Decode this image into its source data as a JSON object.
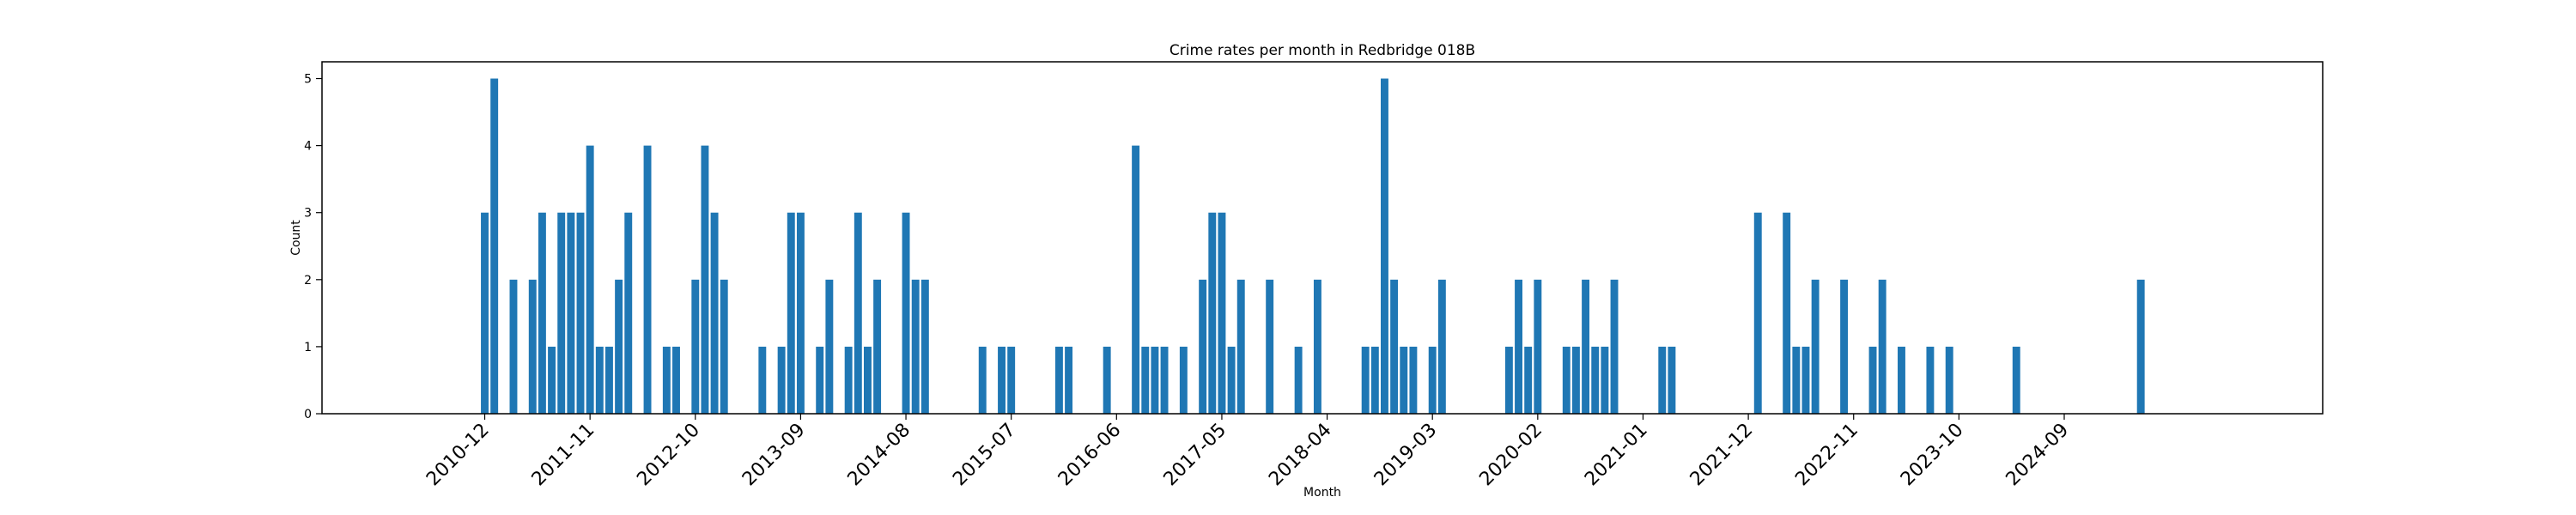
{
  "chart_data": {
    "type": "bar",
    "title": "Crime rates per month in Redbridge 018B",
    "xlabel": "Month",
    "ylabel": "Count",
    "ylim": [
      0,
      5.25
    ],
    "yticks": [
      0,
      1,
      2,
      3,
      4,
      5
    ],
    "xlim": [
      "2009-07",
      "2026-12"
    ],
    "xticks": [
      "2010-12",
      "2011-11",
      "2012-10",
      "2013-09",
      "2014-08",
      "2015-07",
      "2016-06",
      "2017-05",
      "2018-04",
      "2019-03",
      "2020-02",
      "2021-01",
      "2021-12",
      "2022-11",
      "2023-10",
      "2024-09"
    ],
    "grid": false,
    "bar_color": "#1f77b4",
    "x": [
      "2010-12",
      "2011-01",
      "2011-03",
      "2011-05",
      "2011-06",
      "2011-07",
      "2011-08",
      "2011-09",
      "2011-10",
      "2011-11",
      "2011-12",
      "2012-01",
      "2012-02",
      "2012-03",
      "2012-05",
      "2012-07",
      "2012-08",
      "2012-10",
      "2012-11",
      "2012-12",
      "2013-01",
      "2013-05",
      "2013-07",
      "2013-08",
      "2013-09",
      "2013-11",
      "2013-12",
      "2014-02",
      "2014-03",
      "2014-04",
      "2014-05",
      "2014-08",
      "2014-09",
      "2014-10",
      "2015-04",
      "2015-06",
      "2015-07",
      "2015-12",
      "2016-01",
      "2016-05",
      "2016-08",
      "2016-09",
      "2016-10",
      "2016-11",
      "2017-01",
      "2017-03",
      "2017-04",
      "2017-05",
      "2017-06",
      "2017-07",
      "2017-10",
      "2018-01",
      "2018-03",
      "2018-08",
      "2018-09",
      "2018-10",
      "2018-11",
      "2018-12",
      "2019-01",
      "2019-03",
      "2019-04",
      "2019-11",
      "2019-12",
      "2020-01",
      "2020-02",
      "2020-05",
      "2020-06",
      "2020-07",
      "2020-08",
      "2020-09",
      "2020-10",
      "2021-03",
      "2021-04",
      "2022-01",
      "2022-04",
      "2022-05",
      "2022-06",
      "2022-07",
      "2022-10",
      "2023-01",
      "2023-02",
      "2023-04",
      "2023-07",
      "2023-09",
      "2024-04",
      "2025-05"
    ],
    "values": [
      3,
      5,
      2,
      2,
      3,
      1,
      3,
      3,
      3,
      4,
      1,
      1,
      2,
      3,
      4,
      1,
      1,
      2,
      4,
      3,
      2,
      1,
      1,
      3,
      3,
      1,
      2,
      1,
      3,
      1,
      2,
      3,
      2,
      2,
      1,
      1,
      1,
      1,
      1,
      1,
      4,
      1,
      1,
      1,
      1,
      2,
      3,
      3,
      1,
      2,
      2,
      1,
      2,
      1,
      1,
      5,
      2,
      1,
      1,
      1,
      2,
      1,
      2,
      1,
      2,
      1,
      1,
      2,
      1,
      1,
      2,
      1,
      1,
      3,
      3,
      1,
      1,
      2,
      2,
      1,
      2,
      1,
      1,
      1,
      1,
      2
    ]
  }
}
